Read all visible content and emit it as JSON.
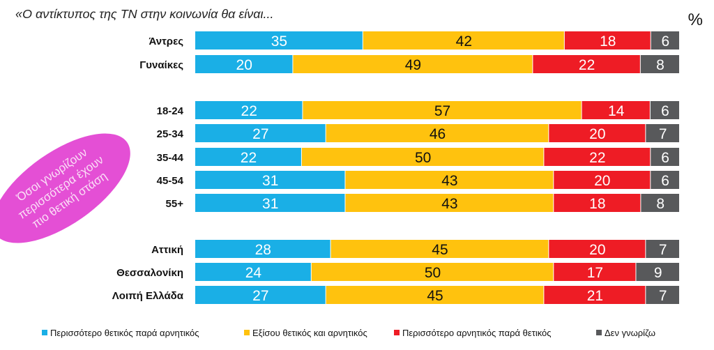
{
  "chart_data": {
    "type": "bar",
    "orientation": "horizontal",
    "stacked": true,
    "title": "«Ο αντίκτυπος της ΤΝ στην κοινωνία θα είναι...",
    "unit_label": "%",
    "groups": [
      {
        "categories": [
          "Άντρες",
          "Γυναίκες"
        ]
      },
      {
        "categories": [
          "18-24",
          "25-34",
          "35-44",
          "45-54",
          "55+"
        ]
      },
      {
        "categories": [
          "Αττική",
          "Θεσσαλονίκη",
          "Λοιπή Ελλάδα"
        ]
      }
    ],
    "categories": [
      "Άντρες",
      "Γυναίκες",
      "18-24",
      "25-34",
      "35-44",
      "45-54",
      "55+",
      "Αττική",
      "Θεσσαλονίκη",
      "Λοιπή Ελλάδα"
    ],
    "series": [
      {
        "name": "Περισσότερο θετικός παρά αρνητικός",
        "color": "#1AAFE6",
        "values": [
          35,
          20,
          22,
          27,
          22,
          31,
          31,
          28,
          24,
          27
        ]
      },
      {
        "name": "Εξίσου θετικός και αρνητικός",
        "color": "#FFC20E",
        "values": [
          42,
          49,
          57,
          46,
          50,
          43,
          43,
          45,
          50,
          45
        ]
      },
      {
        "name": "Περισσότερο αρνητικός παρά θετικός",
        "color": "#EE1C25",
        "values": [
          18,
          22,
          14,
          20,
          22,
          20,
          18,
          20,
          17,
          21
        ]
      },
      {
        "name": "Δεν γνωρίζω",
        "color": "#58595B",
        "values": [
          6,
          8,
          6,
          7,
          6,
          6,
          8,
          7,
          9,
          7
        ]
      }
    ],
    "legend_position": "bottom",
    "grid": false,
    "annotation": {
      "text_lines": [
        "Όσοι γνωρίζουν",
        "περισσότερα έχουν",
        "πιο θετική στάση"
      ],
      "color": "#E44FD5"
    }
  }
}
